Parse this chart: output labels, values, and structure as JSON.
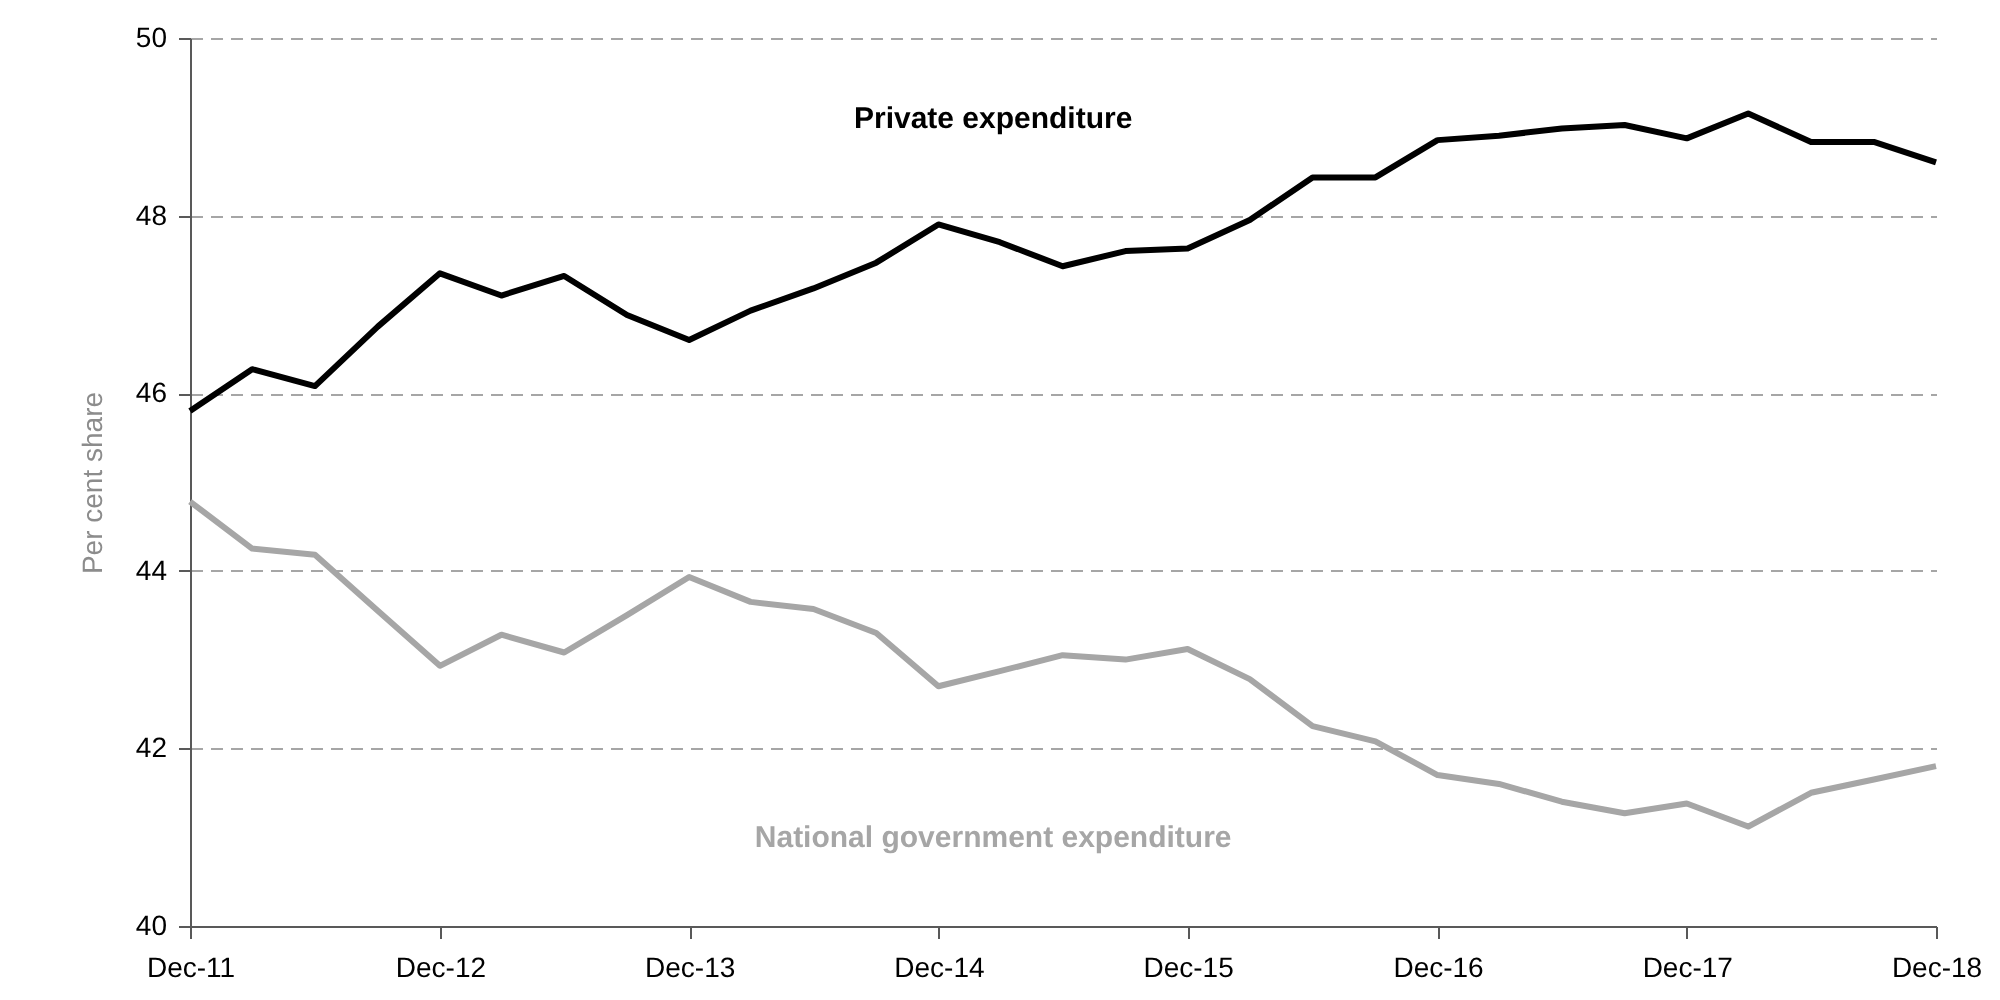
{
  "chart_data": {
    "type": "line",
    "ylabel": "Per cent share",
    "x": [
      "2011-12",
      "2012-03",
      "2012-06",
      "2012-09",
      "2012-12",
      "2013-03",
      "2013-06",
      "2013-09",
      "2013-12",
      "2014-03",
      "2014-06",
      "2014-09",
      "2014-12",
      "2015-03",
      "2015-06",
      "2015-09",
      "2015-12",
      "2016-03",
      "2016-06",
      "2016-09",
      "2016-12",
      "2017-03",
      "2017-06",
      "2017-09",
      "2017-12",
      "2018-03",
      "2018-06",
      "2018-09",
      "2018-12"
    ],
    "series": [
      {
        "name": "Private expenditure",
        "color": "#000000",
        "values": [
          45.8,
          46.27,
          46.08,
          46.75,
          47.35,
          47.1,
          47.32,
          46.88,
          46.6,
          46.93,
          47.18,
          47.47,
          47.9,
          47.7,
          47.43,
          47.6,
          47.63,
          47.95,
          48.43,
          48.43,
          48.85,
          48.9,
          48.98,
          49.02,
          48.87,
          49.15,
          48.83,
          48.83,
          48.6
        ]
      },
      {
        "name": "National government expenditure",
        "color": "#a6a6a6",
        "values": [
          44.78,
          44.25,
          44.18,
          43.55,
          42.93,
          43.28,
          43.08,
          43.5,
          43.93,
          43.65,
          43.57,
          43.3,
          42.7,
          42.87,
          43.05,
          43.0,
          43.12,
          42.78,
          42.25,
          42.08,
          41.7,
          41.6,
          41.4,
          41.27,
          41.38,
          41.12,
          41.5,
          41.65,
          41.8
        ]
      }
    ],
    "xlim": [
      "2011-12",
      "2018-12"
    ],
    "xticks": [
      {
        "value": "2011-12",
        "label": "Dec-11"
      },
      {
        "value": "2012-12",
        "label": "Dec-12"
      },
      {
        "value": "2013-12",
        "label": "Dec-13"
      },
      {
        "value": "2014-12",
        "label": "Dec-14"
      },
      {
        "value": "2015-12",
        "label": "Dec-15"
      },
      {
        "value": "2016-12",
        "label": "Dec-16"
      },
      {
        "value": "2017-12",
        "label": "Dec-17"
      },
      {
        "value": "2018-12",
        "label": "Dec-18"
      }
    ],
    "ylim": [
      40,
      50
    ],
    "yticks": [
      40,
      42,
      44,
      46,
      48,
      50
    ],
    "grid": "y",
    "line_style": "solid",
    "marker": "none"
  }
}
